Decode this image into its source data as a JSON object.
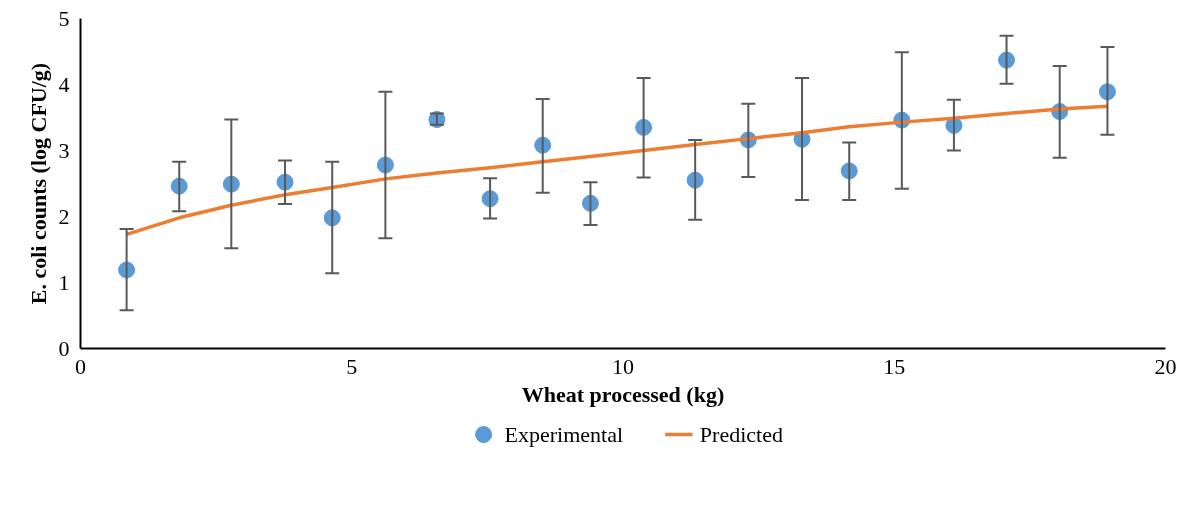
{
  "chart_data": {
    "type": "scatter",
    "xlabel": "Wheat processed (kg)",
    "ylabel": "E. coli counts (log CFU/g)",
    "xlim": [
      0,
      20
    ],
    "xticks": [
      0,
      5,
      10,
      15,
      20
    ],
    "ylim": [
      0,
      5
    ],
    "yticks": [
      0,
      1,
      2,
      3,
      4,
      5
    ],
    "grid": false,
    "legend": "bottom",
    "series": [
      {
        "name": "Experimental",
        "marker": "circle",
        "color": "#5b9bd5",
        "x": [
          0.85,
          1.82,
          2.78,
          3.77,
          4.64,
          5.62,
          6.57,
          7.55,
          8.52,
          9.4,
          10.38,
          11.33,
          12.31,
          13.3,
          14.17,
          15.14,
          16.1,
          17.07,
          18.05,
          18.93
        ],
        "values": [
          1.19,
          2.46,
          2.49,
          2.52,
          1.98,
          2.78,
          3.47,
          2.27,
          3.08,
          2.2,
          3.35,
          2.55,
          3.16,
          3.17,
          2.69,
          3.46,
          3.38,
          4.37,
          3.59,
          3.89
        ],
        "errors": [
          [
            0.58,
            1.81
          ],
          [
            2.08,
            2.83
          ],
          [
            1.52,
            3.47
          ],
          [
            2.19,
            2.85
          ],
          [
            1.14,
            2.83
          ],
          [
            1.67,
            3.89
          ],
          [
            3.39,
            3.56
          ],
          [
            1.97,
            2.58
          ],
          [
            2.36,
            3.78
          ],
          [
            1.87,
            2.52
          ],
          [
            2.59,
            4.1
          ],
          [
            1.95,
            3.16
          ],
          [
            2.6,
            3.71
          ],
          [
            2.25,
            4.1
          ],
          [
            2.25,
            3.12
          ],
          [
            2.42,
            4.49
          ],
          [
            3.0,
            3.77
          ],
          [
            4.01,
            4.74
          ],
          [
            2.89,
            4.28
          ],
          [
            3.24,
            4.57
          ]
        ]
      },
      {
        "name": "Predicted",
        "type": "line",
        "color": "#ed7d31",
        "line_style": "solid",
        "x": [
          0.85,
          1.82,
          2.78,
          3.77,
          4.64,
          5.62,
          6.57,
          7.55,
          8.52,
          9.4,
          10.38,
          11.33,
          12.31,
          13.3,
          14.17,
          15.14,
          16.1,
          17.07,
          18.05,
          18.93
        ],
        "values": [
          1.73,
          1.98,
          2.17,
          2.33,
          2.44,
          2.57,
          2.66,
          2.74,
          2.83,
          2.91,
          3.0,
          3.09,
          3.18,
          3.27,
          3.36,
          3.43,
          3.49,
          3.56,
          3.63,
          3.67
        ]
      }
    ]
  }
}
